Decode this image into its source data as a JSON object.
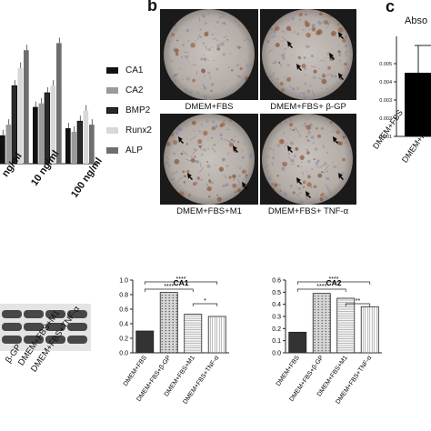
{
  "panel_labels": {
    "b": "b",
    "c": "c"
  },
  "panel_a": {
    "x_labels": [
      "ng/ml",
      "10 ng/ml",
      "100 ng/ml"
    ],
    "legend": [
      {
        "label": "CA1",
        "color": "#111111"
      },
      {
        "label": "CA2",
        "color": "#9a9a9a"
      },
      {
        "label": "BMP2",
        "color": "#2a2a2a"
      },
      {
        "label": "Runx2",
        "color": "#d8d8d8"
      },
      {
        "label": "ALP",
        "color": "#6e6e6e"
      }
    ]
  },
  "panel_b": {
    "images": [
      {
        "caption": "DMEM+FBS"
      },
      {
        "caption": "DMEM+FBS+ β-GP"
      },
      {
        "caption": "DMEM+FBS+M1"
      },
      {
        "caption": "DMEM+FBS+ TNF-α"
      }
    ]
  },
  "panel_c": {
    "title": "Abso",
    "ticks": [
      "0.005",
      "0.004",
      "0.003",
      "0.002",
      "0.001"
    ],
    "x_labels": [
      "DMEM+FBS",
      "DMEM+F"
    ]
  },
  "western_blot": {
    "lane_labels": [
      "β-GP",
      "DMEM+FBS+M1",
      "DMEM+FBS+TNF-α"
    ]
  },
  "chart_data": [
    {
      "type": "bar",
      "title": "",
      "categories": [
        "ng/ml",
        "10 ng/ml",
        "100 ng/ml"
      ],
      "series": [
        {
          "name": "CA1",
          "values": [
            0.08,
            0.16,
            0.1
          ]
        },
        {
          "name": "CA2",
          "values": [
            0.11,
            0.17,
            0.09
          ]
        },
        {
          "name": "BMP2",
          "values": [
            0.22,
            0.2,
            0.12
          ]
        },
        {
          "name": "Runx2",
          "values": [
            0.27,
            0.22,
            0.15
          ]
        },
        {
          "name": "ALP",
          "values": [
            0.32,
            0.34,
            0.11
          ]
        }
      ]
    },
    {
      "type": "bar",
      "title": "CA1",
      "categories": [
        "DMEM+FBS",
        "DMEM+FBS+β-GP",
        "DMEM+FBS+M1",
        "DMEM+FBS+TNF-α"
      ],
      "values": [
        0.3,
        0.83,
        0.53,
        0.5
      ],
      "yticks": [
        "0.0",
        "0.2",
        "0.4",
        "0.6",
        "0.8",
        "1.0"
      ],
      "ylim": [
        0,
        1.0
      ],
      "significance": [
        "****",
        "****",
        "*"
      ]
    },
    {
      "type": "bar",
      "title": "CA2",
      "categories": [
        "DMEM+FBS",
        "DMEM+FBS+β-GP",
        "DMEM+FBS+M1",
        "DMEM+FBS+TNF-α"
      ],
      "values": [
        0.17,
        0.49,
        0.45,
        0.38
      ],
      "yticks": [
        "0.0",
        "0.1",
        "0.2",
        "0.3",
        "0.4",
        "0.5",
        "0.6"
      ],
      "ylim": [
        0,
        0.6
      ],
      "significance": [
        "****",
        "****",
        "**"
      ]
    }
  ]
}
